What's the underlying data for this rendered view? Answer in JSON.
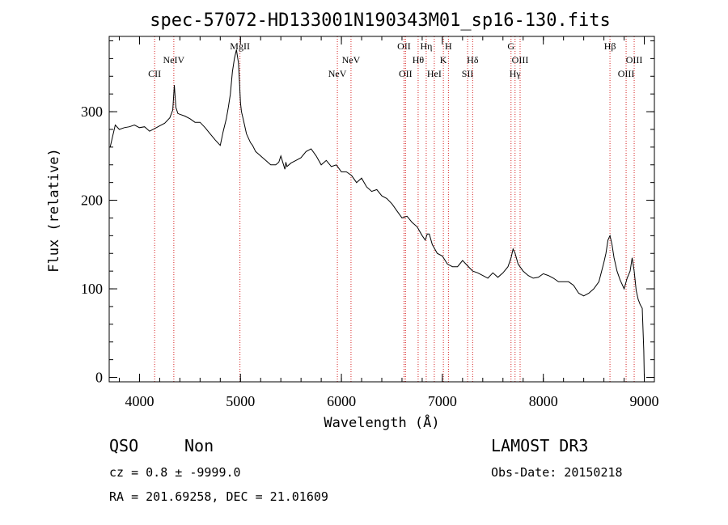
{
  "chart_data": {
    "type": "line",
    "title": "spec-57072-HD133001N190343M01_sp16-130.fits",
    "xlabel": "Wavelength (Å)",
    "ylabel": "Flux (relative)",
    "xlim": [
      3700,
      9100
    ],
    "ylim": [
      -5,
      385
    ],
    "x_ticks": [
      4000,
      5000,
      6000,
      7000,
      8000,
      9000
    ],
    "y_ticks": [
      0,
      100,
      200,
      300
    ],
    "x_minor_step": 200,
    "y_minor_step": 20,
    "grid": false,
    "series": [
      {
        "x": [
          3710,
          3730,
          3760,
          3800,
          3850,
          3900,
          3950,
          4000,
          4050,
          4100,
          4150,
          4200,
          4250,
          4300,
          4330,
          4345,
          4360,
          4380,
          4400,
          4450,
          4500,
          4550,
          4600,
          4650,
          4700,
          4750,
          4800,
          4830,
          4860,
          4880,
          4900,
          4920,
          4940,
          4960,
          4980,
          4990,
          5000,
          5010,
          5020,
          5040,
          5060,
          5080,
          5100,
          5120,
          5150,
          5200,
          5250,
          5300,
          5350,
          5380,
          5400,
          5440,
          5450,
          5460,
          5500,
          5550,
          5600,
          5650,
          5700,
          5750,
          5800,
          5850,
          5900,
          5950,
          6000,
          6050,
          6100,
          6150,
          6200,
          6250,
          6300,
          6350,
          6400,
          6450,
          6500,
          6550,
          6600,
          6650,
          6700,
          6750,
          6800,
          6830,
          6850,
          6870,
          6900,
          6950,
          7000,
          7050,
          7100,
          7150,
          7200,
          7250,
          7300,
          7350,
          7400,
          7450,
          7500,
          7550,
          7600,
          7650,
          7680,
          7700,
          7720,
          7750,
          7800,
          7850,
          7900,
          7950,
          8000,
          8050,
          8100,
          8150,
          8200,
          8250,
          8300,
          8350,
          8400,
          8450,
          8500,
          8550,
          8600,
          8620,
          8640,
          8660,
          8680,
          8700,
          8730,
          8760,
          8800,
          8830,
          8860,
          8880,
          8900,
          8920,
          8940,
          8960,
          8980,
          8995,
          9000
        ],
        "y": [
          260,
          270,
          285,
          280,
          282,
          283,
          285,
          282,
          283,
          278,
          281,
          284,
          287,
          293,
          302,
          330,
          305,
          298,
          297,
          295,
          292,
          288,
          288,
          282,
          275,
          268,
          262,
          278,
          292,
          305,
          320,
          345,
          360,
          370,
          355,
          335,
          310,
          300,
          295,
          285,
          275,
          270,
          265,
          262,
          255,
          250,
          245,
          240,
          240,
          243,
          250,
          235,
          243,
          238,
          242,
          245,
          248,
          255,
          258,
          250,
          240,
          245,
          238,
          240,
          232,
          232,
          228,
          220,
          225,
          215,
          210,
          212,
          205,
          202,
          196,
          188,
          180,
          182,
          175,
          170,
          160,
          155,
          162,
          162,
          150,
          140,
          137,
          128,
          125,
          125,
          132,
          126,
          120,
          118,
          115,
          112,
          118,
          113,
          118,
          125,
          135,
          145,
          140,
          128,
          120,
          115,
          112,
          113,
          117,
          115,
          112,
          108,
          108,
          108,
          104,
          95,
          92,
          95,
          100,
          108,
          130,
          140,
          155,
          160,
          150,
          135,
          120,
          110,
          100,
          112,
          120,
          135,
          120,
          98,
          88,
          82,
          78,
          30,
          0
        ],
        "color": "#000000"
      }
    ],
    "emission_lines": [
      {
        "x": 4150,
        "label": "CII",
        "row": 2
      },
      {
        "x": 4340,
        "label": "NeIV",
        "row": 1
      },
      {
        "x": 4995,
        "label": "MgII",
        "row": 0
      },
      {
        "x": 5960,
        "label": "NeV",
        "row": 2
      },
      {
        "x": 6095,
        "label": "NeV",
        "row": 1
      },
      {
        "x": 6620,
        "label": "OII",
        "row": 0
      },
      {
        "x": 6635,
        "label": "OII",
        "row": 2
      },
      {
        "x": 6760,
        "label": "Hθ",
        "row": 1
      },
      {
        "x": 6840,
        "label": "Hη",
        "row": 0
      },
      {
        "x": 6920,
        "label": "HeI",
        "row": 2
      },
      {
        "x": 7010,
        "label": "K",
        "row": 1
      },
      {
        "x": 7060,
        "label": "H",
        "row": 0
      },
      {
        "x": 7250,
        "label": "SII",
        "row": 2
      },
      {
        "x": 7300,
        "label": "Hδ",
        "row": 1
      },
      {
        "x": 7680,
        "label": "G",
        "row": 0
      },
      {
        "x": 7720,
        "label": "Hγ",
        "row": 2
      },
      {
        "x": 7770,
        "label": "OIII",
        "row": 1
      },
      {
        "x": 8660,
        "label": "Hβ",
        "row": 0
      },
      {
        "x": 8820,
        "label": "OIII",
        "row": 2
      },
      {
        "x": 8900,
        "label": "OIII",
        "row": 1
      }
    ],
    "line_color": "#d62020"
  },
  "info": {
    "class": "QSO",
    "subclass": "Non",
    "cz": "cz = 0.8 ± -9999.0",
    "coords": "RA = 201.69258, DEC =  21.01609",
    "survey": "LAMOST DR3",
    "obs_date": "Obs-Date: 20150218"
  }
}
